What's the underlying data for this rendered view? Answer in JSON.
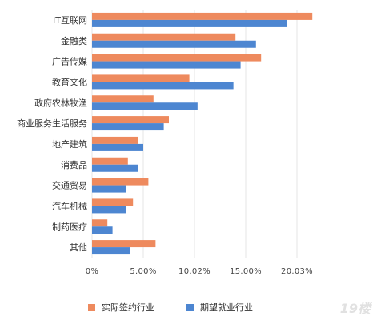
{
  "chart_data": {
    "type": "bar",
    "orientation": "horizontal",
    "categories": [
      "IT互联网",
      "金融类",
      "广告传媒",
      "教育文化",
      "政府农林牧渔",
      "商业服务生活服务",
      "地产建筑",
      "消费品",
      "交通贸易",
      "汽车机械",
      "制药医疗",
      "其他"
    ],
    "series": [
      {
        "name": "实际签约行业",
        "color": "#EE8A5E",
        "values": [
          21.5,
          14.0,
          16.5,
          9.5,
          6.0,
          7.5,
          4.5,
          3.5,
          5.5,
          4.0,
          1.5,
          6.2
        ]
      },
      {
        "name": "期望就业行业",
        "color": "#4D86D1",
        "values": [
          19.0,
          16.0,
          14.5,
          13.8,
          10.3,
          7.0,
          5.0,
          4.5,
          3.3,
          3.3,
          2.0,
          3.7
        ]
      }
    ],
    "xticks": [
      "0%",
      "5.00%",
      "10.02%",
      "15.00%",
      "20.03%"
    ],
    "xlim": [
      0,
      25
    ],
    "grid": true,
    "legend_position": "bottom"
  },
  "watermark": "19楼"
}
